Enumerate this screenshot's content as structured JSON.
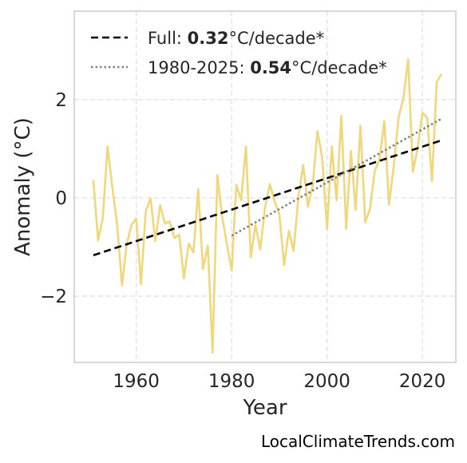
{
  "chart_data": {
    "type": "line",
    "xlabel": "Year",
    "ylabel": "Anomaly (°C)",
    "xlim": [
      1947,
      2027
    ],
    "ylim": [
      -3.35,
      3.8
    ],
    "xticks": [
      1960,
      1980,
      2000,
      2020
    ],
    "yticks": [
      -2,
      0,
      2
    ],
    "ytick_labels": [
      "−2",
      "0",
      "2"
    ],
    "grid": true,
    "legend_position": "top-left",
    "series": [
      {
        "color": "#f0d77b",
        "style": "solid",
        "x": [
          1951,
          1952,
          1953,
          1954,
          1955,
          1956,
          1957,
          1958,
          1959,
          1960,
          1961,
          1962,
          1963,
          1964,
          1965,
          1966,
          1967,
          1968,
          1969,
          1970,
          1971,
          1972,
          1973,
          1974,
          1975,
          1976,
          1977,
          1978,
          1979,
          1980,
          1981,
          1982,
          1983,
          1984,
          1985,
          1986,
          1987,
          1988,
          1989,
          1990,
          1991,
          1992,
          1993,
          1994,
          1995,
          1996,
          1997,
          1998,
          1999,
          2000,
          2001,
          2002,
          2003,
          2004,
          2005,
          2006,
          2007,
          2008,
          2009,
          2010,
          2011,
          2012,
          2013,
          2014,
          2015,
          2016,
          2017,
          2018,
          2019,
          2020,
          2021,
          2022,
          2023,
          2024
        ],
        "y": [
          0.36,
          -0.87,
          -0.4,
          1.05,
          0.2,
          -0.55,
          -1.78,
          -0.95,
          -0.55,
          -0.42,
          -1.76,
          -0.27,
          -0.01,
          -0.88,
          -0.15,
          -0.52,
          -0.48,
          -0.82,
          -0.75,
          -1.64,
          -0.93,
          -1.11,
          0.18,
          -1.45,
          -0.97,
          -3.15,
          0.46,
          -0.37,
          -0.94,
          -1.48,
          0.26,
          -0.05,
          1.04,
          -1.21,
          -0.55,
          -1.05,
          -0.2,
          0.28,
          -0.07,
          -0.33,
          -1.37,
          -0.67,
          -1.08,
          0.02,
          0.67,
          -0.18,
          0.26,
          1.36,
          0.8,
          -0.63,
          1.05,
          -0.05,
          1.67,
          -0.63,
          0.96,
          -0.25,
          1.47,
          -0.5,
          -0.23,
          0.55,
          0.78,
          1.56,
          -0.14,
          0.65,
          1.64,
          2.02,
          2.82,
          0.53,
          1.02,
          1.73,
          1.63,
          0.34,
          2.36,
          2.52
        ]
      },
      {
        "name_prefix": "Full: ",
        "name_bold": "0.32",
        "name_suffix": "°C/decade*",
        "color": "#000000",
        "style": "dashed",
        "x": [
          1951,
          2024
        ],
        "y": [
          -1.17,
          1.17
        ]
      },
      {
        "name_prefix": "1980-2025: ",
        "name_bold": "0.54",
        "name_suffix": "°C/decade*",
        "color": "#808080",
        "style": "dotted",
        "x": [
          1980,
          2024
        ],
        "y": [
          -0.77,
          1.61
        ]
      }
    ]
  },
  "credit": "LocalClimateTrends.com"
}
